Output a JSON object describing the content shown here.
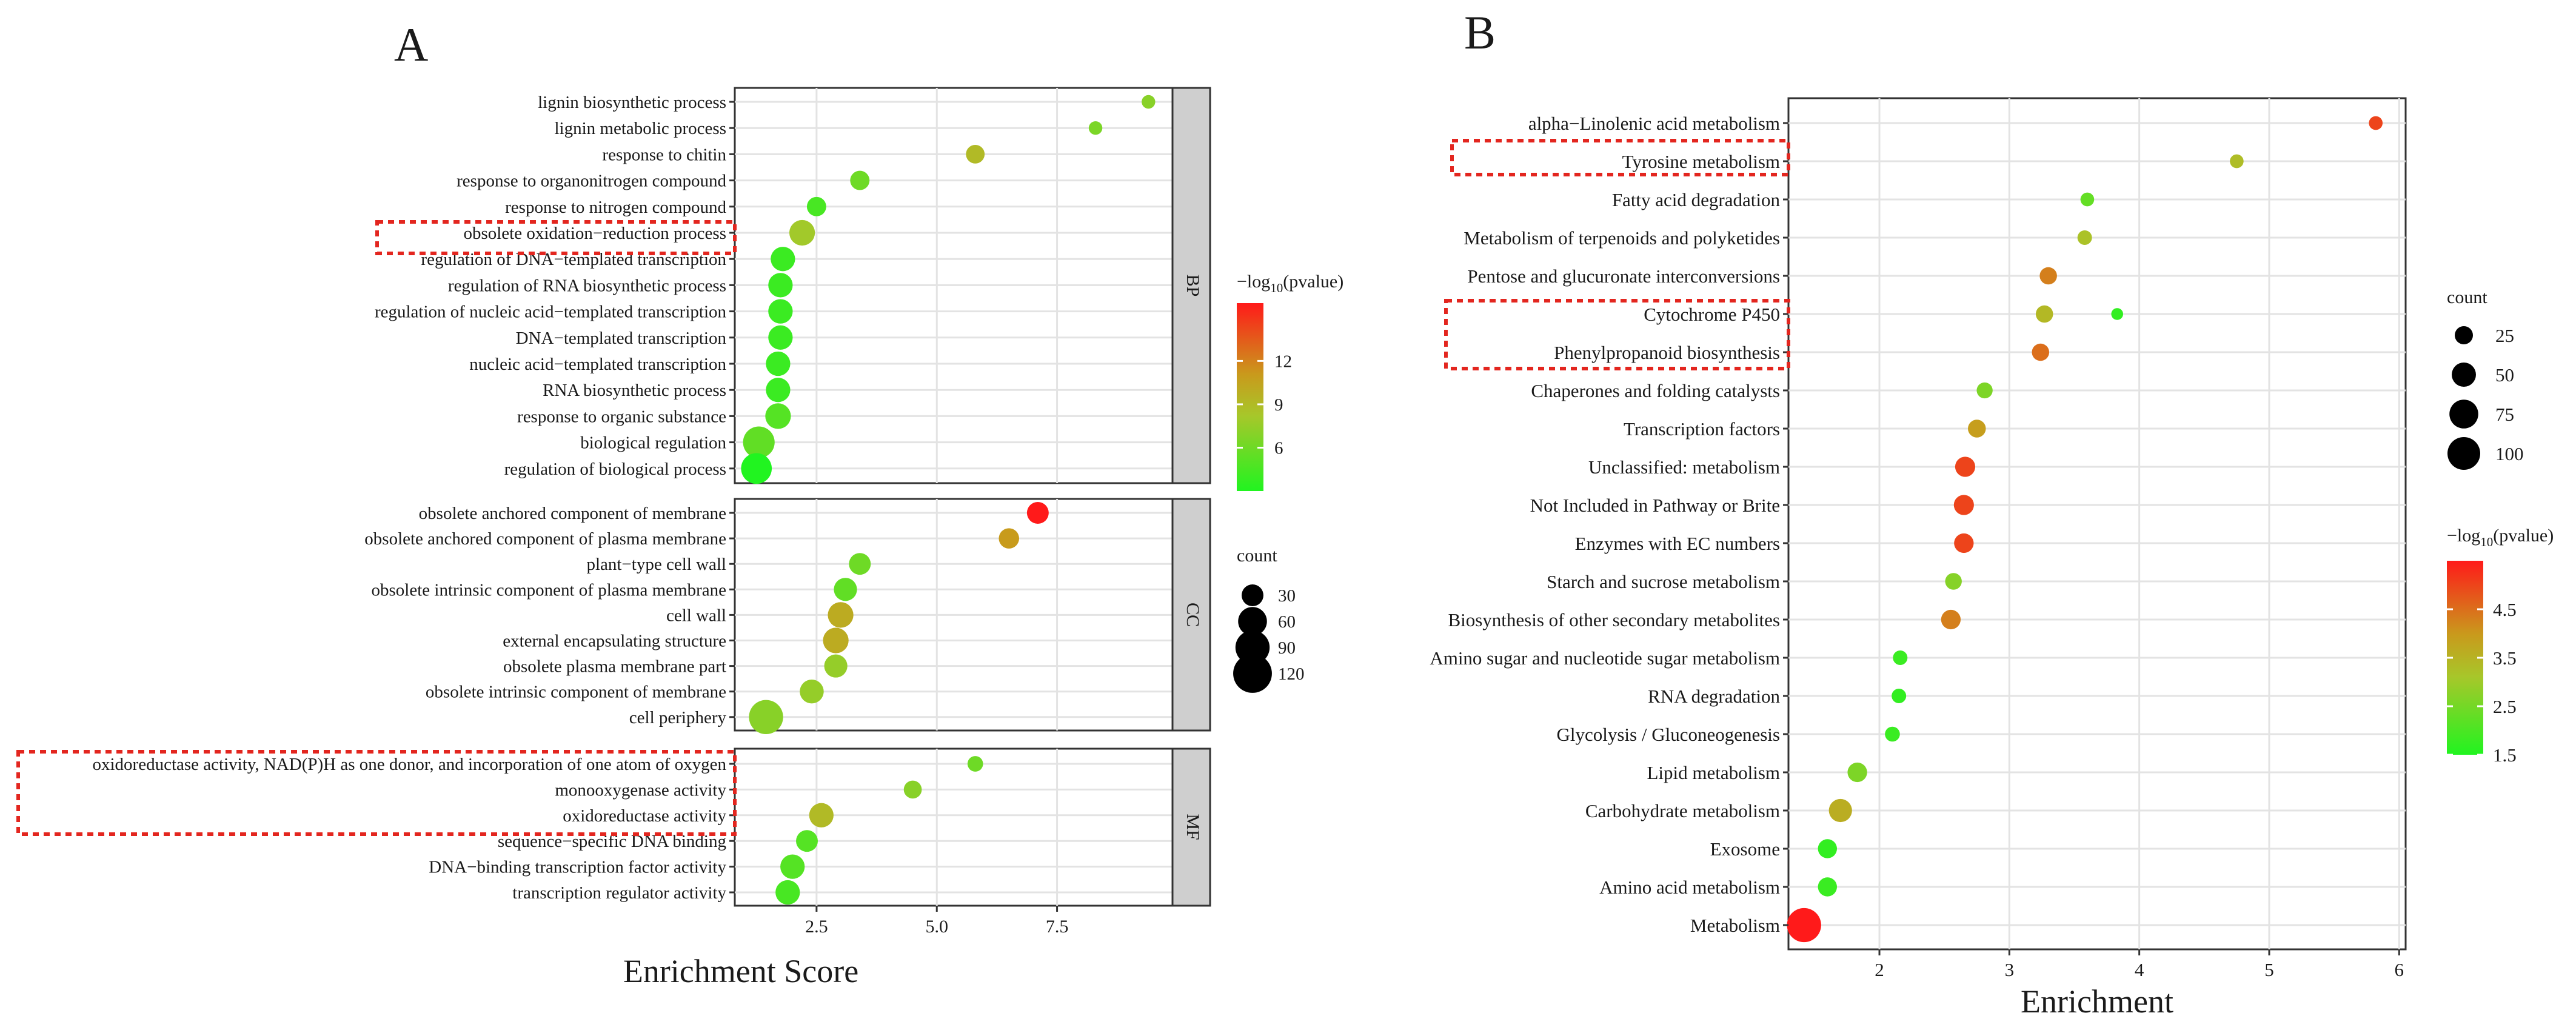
{
  "chart_data": [
    {
      "panel_label": "A",
      "type": "scatter",
      "subtype": "faceted bubble plot",
      "xlabel": "Enrichment Score",
      "ylabel": "",
      "xlim": [
        0.8,
        9.9
      ],
      "xticks": [
        2.5,
        5.0,
        7.5
      ],
      "xtick_labels": [
        "2.5",
        "5.0",
        "7.5"
      ],
      "grid": true,
      "facets": [
        {
          "strip": "BP",
          "terms": [
            {
              "term": "lignin biosynthetic process",
              "x": 9.4,
              "count": 8,
              "log10p": 7.0
            },
            {
              "term": "lignin metabolic process",
              "x": 8.3,
              "count": 8,
              "log10p": 6.5
            },
            {
              "term": "response to chitin",
              "x": 5.8,
              "count": 20,
              "log10p": 9.0
            },
            {
              "term": "response to organonitrogen compound",
              "x": 3.4,
              "count": 22,
              "log10p": 6.0
            },
            {
              "term": "response to nitrogen compound",
              "x": 2.5,
              "count": 22,
              "log10p": 4.5
            },
            {
              "term": "obsolete oxidation−reduction process",
              "x": 2.2,
              "count": 45,
              "log10p": 8.0,
              "highlighted": true
            },
            {
              "term": "regulation of DNA−templated transcription",
              "x": 1.8,
              "count": 40,
              "log10p": 4.0
            },
            {
              "term": "regulation of RNA biosynthetic process",
              "x": 1.75,
              "count": 40,
              "log10p": 4.0
            },
            {
              "term": "regulation of nucleic acid−templated transcription",
              "x": 1.75,
              "count": 40,
              "log10p": 4.0
            },
            {
              "term": "DNA−templated transcription",
              "x": 1.75,
              "count": 40,
              "log10p": 4.0
            },
            {
              "term": "nucleic acid−templated transcription",
              "x": 1.7,
              "count": 40,
              "log10p": 4.0
            },
            {
              "term": "RNA biosynthetic process",
              "x": 1.7,
              "count": 40,
              "log10p": 4.0
            },
            {
              "term": "response to organic substance",
              "x": 1.7,
              "count": 45,
              "log10p": 5.0
            },
            {
              "term": "biological regulation",
              "x": 1.3,
              "count": 75,
              "log10p": 5.5
            },
            {
              "term": "regulation of biological process",
              "x": 1.25,
              "count": 70,
              "log10p": 3.0
            }
          ]
        },
        {
          "strip": "CC",
          "terms": [
            {
              "term": "obsolete anchored component of membrane",
              "x": 7.1,
              "count": 30,
              "log10p": 16.0
            },
            {
              "term": "obsolete anchored component of plasma membrane",
              "x": 6.5,
              "count": 25,
              "log10p": 11.0
            },
            {
              "term": "plant−type cell wall",
              "x": 3.4,
              "count": 30,
              "log10p": 6.0
            },
            {
              "term": "obsolete intrinsic component of plasma membrane",
              "x": 3.1,
              "count": 35,
              "log10p": 5.5
            },
            {
              "term": "cell wall",
              "x": 3.0,
              "count": 45,
              "log10p": 10.0
            },
            {
              "term": "external encapsulating structure",
              "x": 2.9,
              "count": 45,
              "log10p": 10.0
            },
            {
              "term": "obsolete plasma membrane part",
              "x": 2.9,
              "count": 35,
              "log10p": 7.5
            },
            {
              "term": "obsolete intrinsic component of membrane",
              "x": 2.4,
              "count": 38,
              "log10p": 7.5
            },
            {
              "term": "cell periphery",
              "x": 1.45,
              "count": 90,
              "log10p": 7.0
            }
          ]
        },
        {
          "strip": "MF",
          "terms": [
            {
              "term": "oxidoreductase activity, NAD(P)H as one donor, and incorporation of one atom of oxygen",
              "x": 5.8,
              "count": 12,
              "log10p": 6.0,
              "highlighted": true
            },
            {
              "term": "monooxygenase activity",
              "x": 4.5,
              "count": 18,
              "log10p": 7.0,
              "highlighted": true
            },
            {
              "term": "oxidoreductase activity",
              "x": 2.6,
              "count": 40,
              "log10p": 9.0,
              "highlighted": true
            },
            {
              "term": "sequence−specific DNA binding",
              "x": 2.3,
              "count": 30,
              "log10p": 5.0
            },
            {
              "term": "DNA−binding transcription factor activity",
              "x": 2.0,
              "count": 40,
              "log10p": 5.0
            },
            {
              "term": "transcription regulator activity",
              "x": 1.9,
              "count": 40,
              "log10p": 4.5
            }
          ]
        }
      ],
      "color_legend": {
        "title_prefix": "−log",
        "title_sub": "10",
        "title_suffix": "(pvalue)",
        "ticks": [
          6,
          9,
          12
        ],
        "tick_labels": [
          "6",
          "9",
          "12"
        ],
        "range": [
          3,
          16
        ],
        "low_color": "#21f420",
        "high_color": "#ff1a1a"
      },
      "size_legend": {
        "title": "count",
        "values": [
          30,
          60,
          90,
          120
        ],
        "labels": [
          "30",
          "60",
          "90",
          "120"
        ]
      }
    },
    {
      "panel_label": "B",
      "type": "scatter",
      "subtype": "bubble plot",
      "xlabel": "Enrichment",
      "ylabel": "",
      "xlim": [
        1.3,
        6.05
      ],
      "xticks": [
        2,
        3,
        4,
        5,
        6
      ],
      "xtick_labels": [
        "2",
        "3",
        "4",
        "5",
        "6"
      ],
      "grid": true,
      "terms": [
        {
          "term": "alpha−Linolenic acid metabolism",
          "x": 5.82,
          "count": 12,
          "log10p": 5.0
        },
        {
          "term": "Tyrosine metabolism",
          "x": 4.75,
          "count": 12,
          "log10p": 3.3,
          "highlighted": true
        },
        {
          "term": "Fatty acid degradation",
          "x": 3.6,
          "count": 12,
          "log10p": 2.3
        },
        {
          "term": "Metabolism of terpenoids and polyketides",
          "x": 3.58,
          "count": 14,
          "log10p": 3.2
        },
        {
          "term": "Pentose and glucuronate interconversions",
          "x": 3.3,
          "count": 22,
          "log10p": 4.3
        },
        {
          "term": "Cytochrome P450",
          "x": 3.27,
          "count": 22,
          "log10p": 3.4,
          "highlighted": true
        },
        {
          "term": "Cytochrome P450",
          "x": 3.83,
          "count": 8,
          "log10p": 1.7,
          "highlighted": true
        },
        {
          "term": "Phenylpropanoid biosynthesis",
          "x": 3.24,
          "count": 22,
          "log10p": 4.5,
          "highlighted": true
        },
        {
          "term": "Chaperones and folding catalysts",
          "x": 2.81,
          "count": 18,
          "log10p": 2.6
        },
        {
          "term": "Transcription factors",
          "x": 2.75,
          "count": 24,
          "log10p": 3.9
        },
        {
          "term": "Unclassified: metabolism",
          "x": 2.66,
          "count": 32,
          "log10p": 5.0
        },
        {
          "term": "Not Included in Pathway or Brite",
          "x": 2.65,
          "count": 32,
          "log10p": 5.0
        },
        {
          "term": "Enzymes with EC numbers",
          "x": 2.65,
          "count": 30,
          "log10p": 5.0
        },
        {
          "term": "Starch and sucrose metabolism",
          "x": 2.57,
          "count": 20,
          "log10p": 2.7
        },
        {
          "term": "Biosynthesis of other secondary metabolites",
          "x": 2.55,
          "count": 30,
          "log10p": 4.3
        },
        {
          "term": "Amino sugar and nucleotide sugar metabolism",
          "x": 2.16,
          "count": 14,
          "log10p": 1.8
        },
        {
          "term": "RNA degradation",
          "x": 2.15,
          "count": 14,
          "log10p": 1.7
        },
        {
          "term": "Glycolysis / Gluconeogenesis",
          "x": 2.1,
          "count": 15,
          "log10p": 1.8
        },
        {
          "term": "Lipid metabolism",
          "x": 1.83,
          "count": 30,
          "log10p": 2.6
        },
        {
          "term": "Carbohydrate metabolism",
          "x": 1.7,
          "count": 45,
          "log10p": 3.6
        },
        {
          "term": "Exosome",
          "x": 1.6,
          "count": 28,
          "log10p": 1.7
        },
        {
          "term": "Amino acid metabolism",
          "x": 1.6,
          "count": 28,
          "log10p": 1.8
        },
        {
          "term": "Metabolism",
          "x": 1.42,
          "count": 110,
          "log10p": 5.5
        }
      ],
      "size_legend": {
        "title": "count",
        "values": [
          25,
          50,
          75,
          100
        ],
        "labels": [
          "25",
          "50",
          "75",
          "100"
        ]
      },
      "color_legend": {
        "title_prefix": "−log",
        "title_sub": "10",
        "title_suffix": "(pvalue)",
        "ticks": [
          1.5,
          2.5,
          3.5,
          4.5
        ],
        "tick_labels": [
          "1.5",
          "2.5",
          "3.5",
          "4.5"
        ],
        "range": [
          1.5,
          5.5
        ],
        "low_color": "#21f420",
        "high_color": "#ff1a1a"
      }
    }
  ]
}
